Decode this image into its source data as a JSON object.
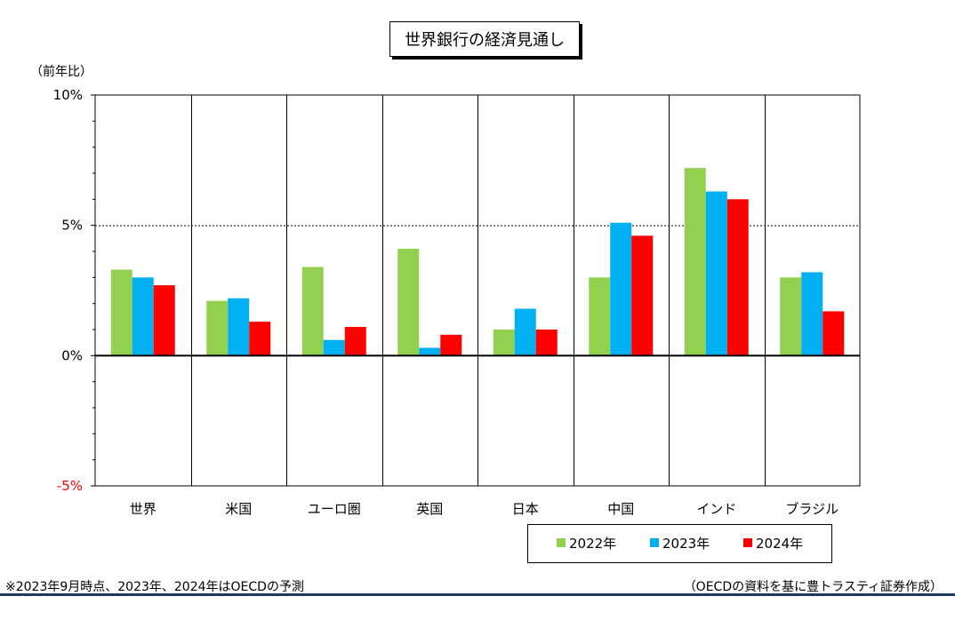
{
  "title": "世界銀行の経済見通し",
  "unit_label": "（前年比）",
  "note_left": "※2023年9月時点、2023年、2024年はOECDの予測",
  "note_right": "（OECDの資料を基に豊トラスティ証券作成）",
  "chart_data": {
    "type": "bar",
    "title": "世界銀行の経済見通し",
    "ylabel": "（前年比）",
    "categories": [
      "世界",
      "米国",
      "ユーロ圏",
      "英国",
      "日本",
      "中国",
      "インド",
      "ブラジル"
    ],
    "series": [
      {
        "name": "2022年",
        "color": "#92d050",
        "values": [
          3.3,
          2.1,
          3.4,
          4.1,
          1.0,
          3.0,
          7.2,
          3.0
        ]
      },
      {
        "name": "2023年",
        "color": "#00b0f0",
        "values": [
          3.0,
          2.2,
          0.6,
          0.3,
          1.8,
          5.1,
          6.3,
          3.2
        ]
      },
      {
        "name": "2024年",
        "color": "#ff0000",
        "values": [
          2.7,
          1.3,
          1.1,
          0.8,
          1.0,
          4.6,
          6.0,
          1.7
        ]
      }
    ],
    "ylim": [
      -5,
      10
    ],
    "yticks": [
      10,
      5,
      0,
      -5
    ],
    "ytick_labels": [
      "10%",
      "5%",
      "0%",
      "-5%"
    ],
    "ytick_label_colors": [
      "#000000",
      "#000000",
      "#000000",
      "#ff0000"
    ],
    "legend_position": "bottom-right"
  }
}
